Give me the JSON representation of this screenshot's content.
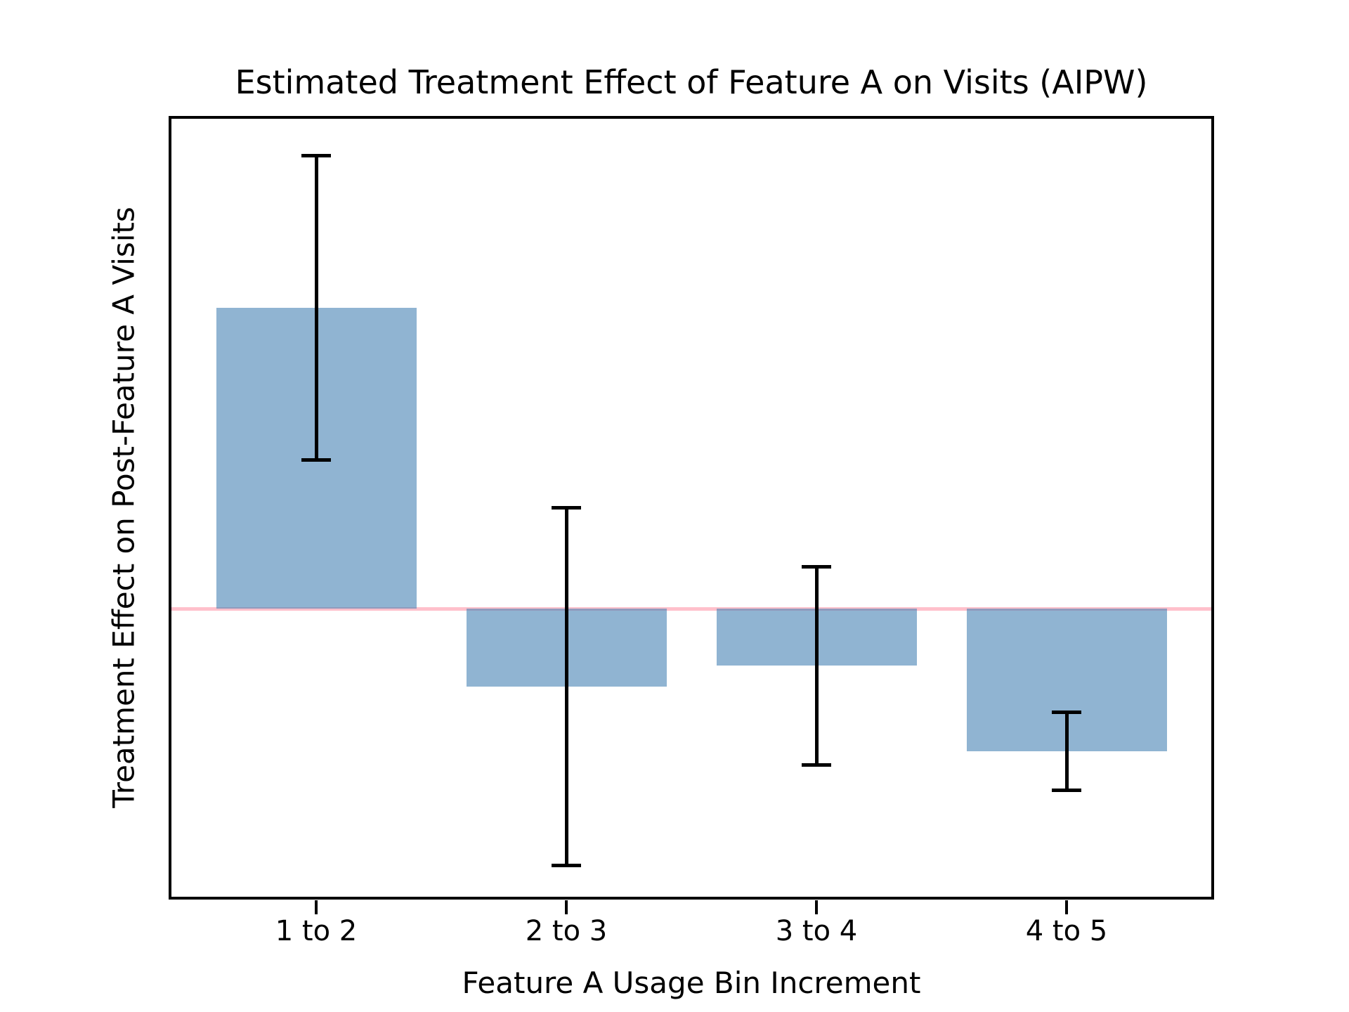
{
  "chart_data": {
    "type": "bar",
    "title": "Estimated Treatment Effect of Feature A on Visits (AIPW)",
    "xlabel": "Feature A Usage Bin Increment",
    "ylabel": "Treatment Effect on Post-Feature A Visits",
    "categories": [
      "1 to 2",
      "2 to 3",
      "3 to 4",
      "4 to 5"
    ],
    "values": [
      2.0,
      -0.52,
      -0.38,
      -0.95
    ],
    "error_bars": [
      1.01,
      1.19,
      0.66,
      0.26
    ],
    "zero_reference_line": 0,
    "ylim": [
      -1.94,
      3.28
    ],
    "y_tick_labels": [],
    "grid": false,
    "legend": "none",
    "colors": {
      "bar_fill": "rgba(70,130,180,0.6)",
      "bar_fill_flat_hex": "#90B4D2",
      "zero_line": "#FFC0CB",
      "error_bar": "#000000",
      "spine": "#000000",
      "text": "#000000",
      "background": "#FFFFFF"
    }
  }
}
